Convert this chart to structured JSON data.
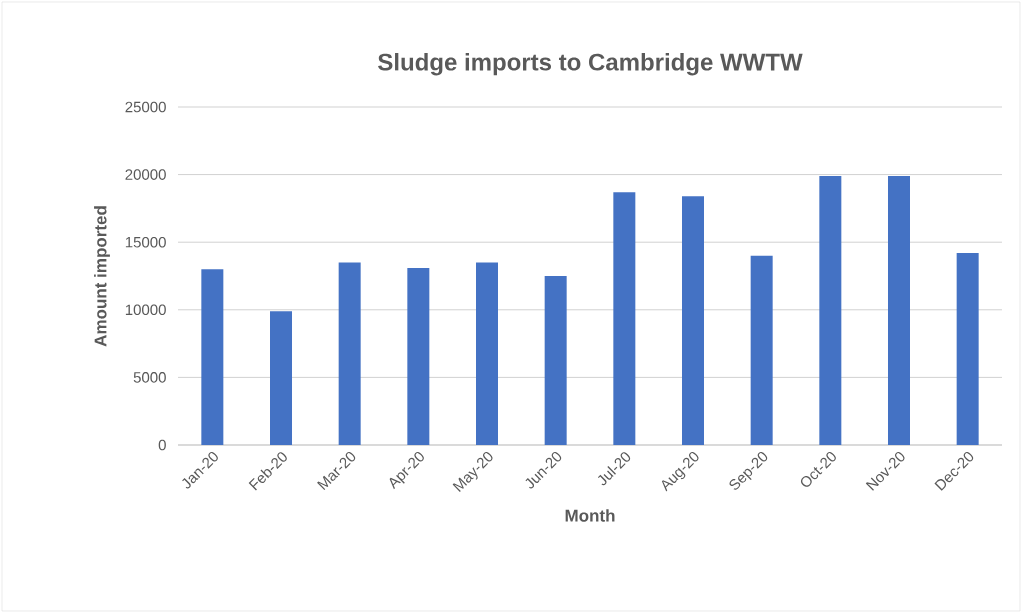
{
  "chart_data": {
    "type": "bar",
    "title": "Sludge imports to Cambridge WWTW",
    "xlabel": "Month",
    "ylabel": "Amount imported",
    "categories": [
      "Jan-20",
      "Feb-20",
      "Mar-20",
      "Apr-20",
      "May-20",
      "Jun-20",
      "Jul-20",
      "Aug-20",
      "Sep-20",
      "Oct-20",
      "Nov-20",
      "Dec-20"
    ],
    "values": [
      13000,
      9900,
      13500,
      13100,
      13500,
      12500,
      18700,
      18400,
      14000,
      19900,
      19900,
      14200
    ],
    "color": "#4472c4",
    "ylim": [
      0,
      25000
    ],
    "yticks": [
      0,
      5000,
      10000,
      15000,
      20000,
      25000
    ],
    "grid": "y"
  }
}
